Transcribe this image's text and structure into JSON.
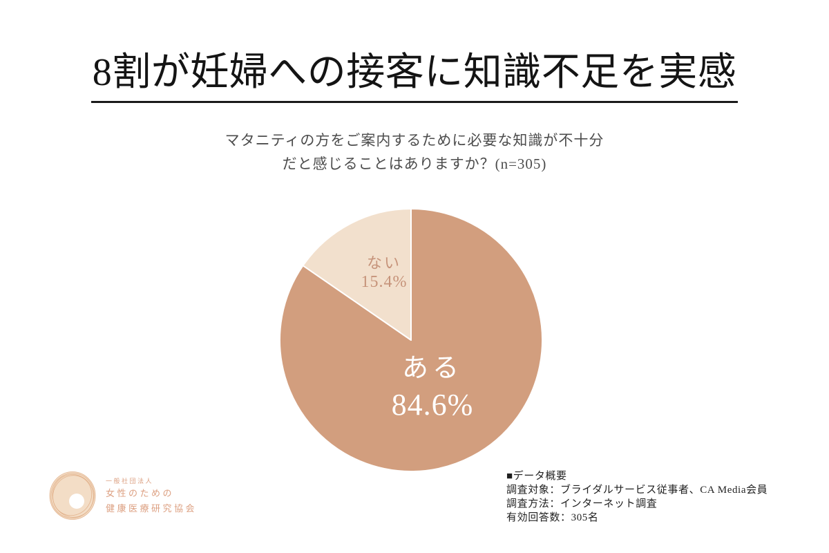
{
  "title": {
    "text": "8割が妊婦への接客に知識不足を実感"
  },
  "subtitle": {
    "line1": "マタニティの方をご案内するために必要な知識が不十分",
    "line2": "だと感じることはありますか？(n=305)"
  },
  "chart_data": {
    "type": "pie",
    "title": "マタニティの方をご案内するために必要な知識が不十分だと感じることはありますか？(n=305)",
    "n": 305,
    "start_angle_deg": 0,
    "direction": "clockwise",
    "stroke": "#ffffff",
    "slices": [
      {
        "label": "ある",
        "value": 84.6,
        "value_display": "84.6%",
        "color": "#d29e7e",
        "label_color": "#ffffff"
      },
      {
        "label": "ない",
        "value": 15.4,
        "value_display": "15.4%",
        "color": "#f2e0cd",
        "label_color": "#c6937a"
      }
    ]
  },
  "logo": {
    "line1": "一般社団法人",
    "line2": "女性のための",
    "line3": "健康医療研究協会",
    "text_color": "#dc9f80",
    "mark_fill": "#f3ddc6",
    "mark_stroke": "#e2b28c"
  },
  "data_summary": {
    "heading": "■データ概要",
    "line1": "調査対象：ブライダルサービス従事者、CA Media会員",
    "line2": "調査方法：インターネット調査",
    "line3": "有効回答数：305名"
  }
}
